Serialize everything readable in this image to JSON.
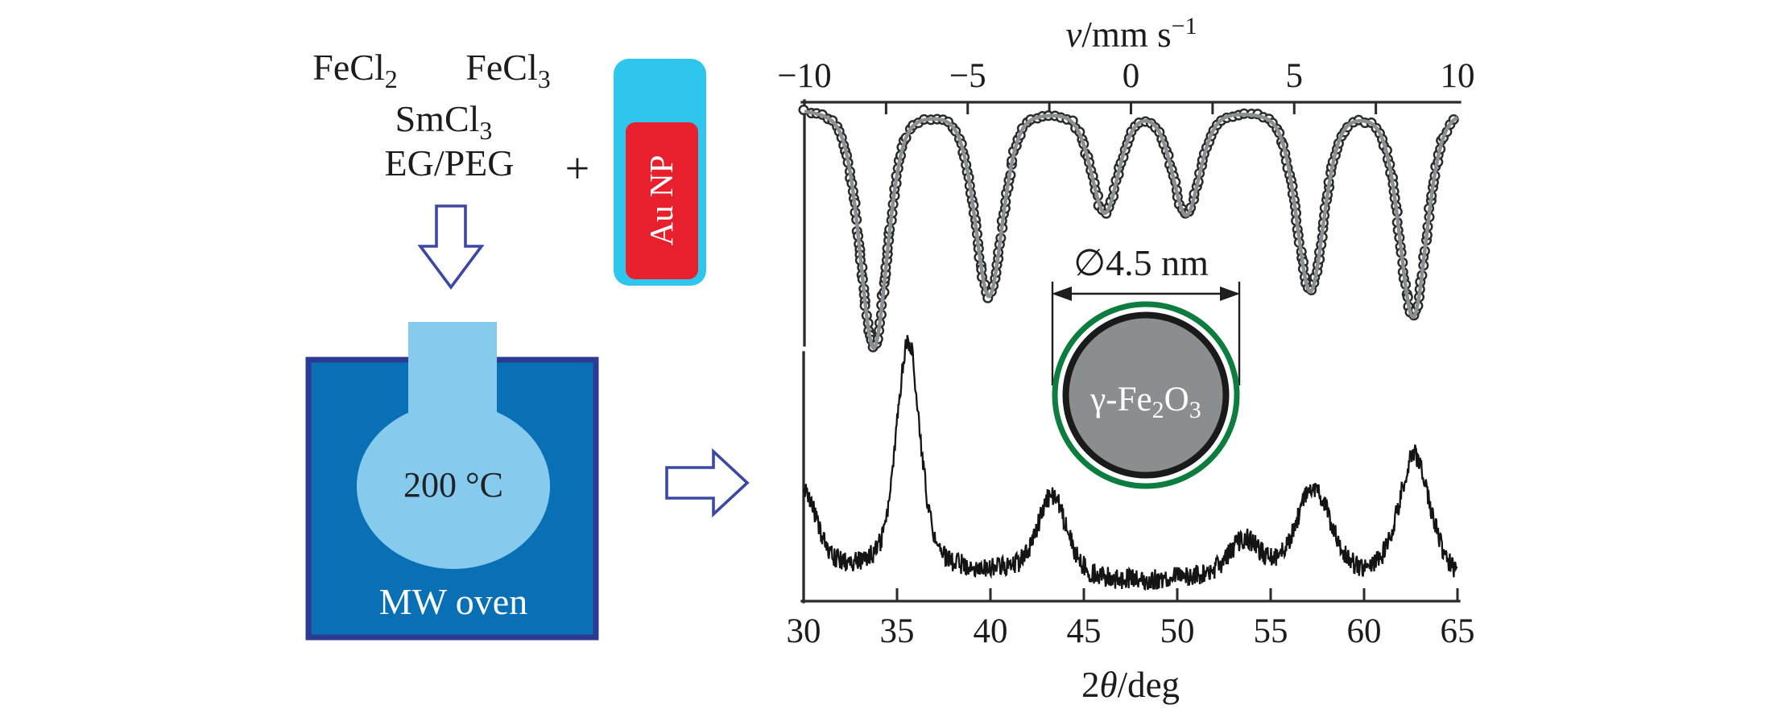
{
  "figure": {
    "description": "Microwave-assisted synthesis scheme of Au/gamma-Fe2O3 nanoparticles with Moessbauer spectrum and X-ray diffraction pattern"
  },
  "reagents": {
    "r1a_base": "FeCl",
    "r1a_sub": "2",
    "r1b_base": "FeCl",
    "r1b_sub": "3",
    "r2_base": "SmCl",
    "r2_sub": "3",
    "r3": "EG/PEG",
    "plus": "+"
  },
  "vial": {
    "label": "Au NP",
    "body_color": "#2ec6ec",
    "inner_color": "#e81f2c"
  },
  "oven": {
    "temp": "200 °C",
    "label": "MW oven",
    "body_color": "#0a70b6",
    "border_color": "#2c3a92",
    "flask_color": "#86cbee"
  },
  "arrows": {
    "outline_color": "#3c48a4"
  },
  "particle": {
    "diameter_label": "∅4.5 nm",
    "formula_pre": "γ-Fe",
    "formula_sub1": "2",
    "formula_mid": "O",
    "formula_sub2": "3",
    "core_color": "#8b8e90",
    "ring_color": "#0c7d3e"
  },
  "chart_data": [
    {
      "id": "moessbauer_spectrum",
      "type": "scatter",
      "x_label": "ν/mm s⁻¹",
      "x_label_parts": {
        "nu": "ν",
        "rest": "/mm s",
        "sup": "−1"
      },
      "xlim": [
        -10,
        10
      ],
      "tick_values": [
        -10,
        -5,
        0,
        5,
        10
      ],
      "tick_labels": [
        "−10",
        "−5",
        "0",
        "5",
        "10"
      ],
      "minor_tick_step": 2.5,
      "y_axis": "relative transmission (arb. units), absorption dips downward",
      "sextet_dips": {
        "centers_mm_s": [
          -7.88,
          -4.35,
          -0.8,
          1.69,
          5.49,
          8.64
        ],
        "relative_depths": [
          1.0,
          0.78,
          0.43,
          0.44,
          0.76,
          0.87
        ],
        "hwhm_mm_s": 0.5
      },
      "marker": "open-circle",
      "marker_color": "#2b2b2b",
      "fit_color": "#8a8f92"
    },
    {
      "id": "xrd_pattern",
      "type": "line",
      "x_label": "2θ/deg",
      "x_label_parts": {
        "pre": "2",
        "theta": "θ",
        "rest": "/deg"
      },
      "xlim": [
        30,
        65
      ],
      "tick_values": [
        30,
        35,
        40,
        45,
        50,
        55,
        60,
        65
      ],
      "tick_labels": [
        "30",
        "35",
        "40",
        "45",
        "50",
        "55",
        "60",
        "65"
      ],
      "y_axis": "intensity (arb. units)",
      "peaks": [
        {
          "two_theta": 30.0,
          "rel_intensity": 0.33,
          "hwhm_deg": 0.8
        },
        {
          "two_theta": 35.6,
          "rel_intensity": 0.98,
          "hwhm_deg": 0.75
        },
        {
          "two_theta": 43.3,
          "rel_intensity": 0.34,
          "hwhm_deg": 0.9
        },
        {
          "two_theta": 53.6,
          "rel_intensity": 0.15,
          "hwhm_deg": 1.0
        },
        {
          "two_theta": 57.3,
          "rel_intensity": 0.38,
          "hwhm_deg": 1.1
        },
        {
          "two_theta": 62.7,
          "rel_intensity": 0.53,
          "hwhm_deg": 1.0
        }
      ],
      "noise_rel": 0.045,
      "line_color": "#141414"
    }
  ]
}
